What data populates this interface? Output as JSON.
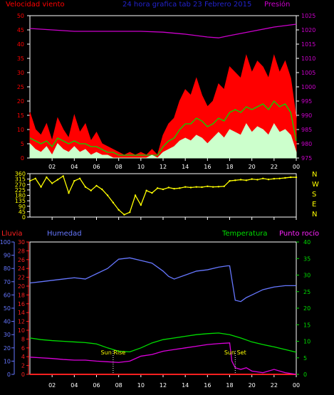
{
  "header": {
    "title": "24 hora grafica tab   23 Febrero 2015",
    "left_label": "Velocidad viento",
    "right_label": "Presión"
  },
  "colors": {
    "wind_gust": "#ff0000",
    "wind_avg": "#00dd00",
    "wind_speed": "#ccffcc",
    "pressure": "#cc00cc",
    "direction": "#ffff00",
    "rain": "#ff2020",
    "humidity": "#6677ff",
    "temperature": "#00dd00",
    "dewpoint": "#dd00dd",
    "title": "#2222cc",
    "axis": "#ffffff"
  },
  "x_ticks": [
    "02",
    "04",
    "06",
    "08",
    "10",
    "12",
    "14",
    "16",
    "18",
    "20",
    "22",
    "00"
  ],
  "compass": [
    "N",
    "W",
    "S",
    "E",
    "N"
  ],
  "annotations": {
    "sunrise": "Sun Rise",
    "sunset": "Sun Set"
  },
  "chart_data": [
    {
      "type": "line",
      "name": "wind-pressure",
      "ylim_left": [
        0,
        50
      ],
      "left_ticks": [
        0,
        5,
        10,
        15,
        20,
        25,
        30,
        35,
        40,
        45,
        50
      ],
      "ylim_right": [
        975,
        1025
      ],
      "right_ticks": [
        975,
        980,
        985,
        990,
        995,
        1000,
        1005,
        1010,
        1015,
        1020,
        1025
      ],
      "xlim": [
        0,
        24
      ],
      "series": [
        {
          "key": "gust",
          "x": [
            0,
            0.5,
            1,
            1.5,
            2,
            2.5,
            3,
            3.5,
            4,
            4.5,
            5,
            5.5,
            6,
            6.5,
            7,
            7.5,
            8,
            8.5,
            9,
            9.5,
            10,
            10.5,
            11,
            11.5,
            12,
            12.5,
            13,
            13.5,
            14,
            14.5,
            15,
            15.5,
            16,
            16.5,
            17,
            17.5,
            18,
            18.5,
            19,
            19.5,
            20,
            20.5,
            21,
            21.5,
            22,
            22.5,
            23,
            23.5,
            24
          ],
          "values": [
            16,
            10,
            8,
            12,
            6,
            14,
            10,
            7,
            15,
            9,
            12,
            6,
            9,
            5,
            4,
            3,
            2,
            1,
            2,
            1,
            2,
            1,
            3,
            1,
            8,
            12,
            14,
            20,
            24,
            22,
            28,
            22,
            18,
            20,
            26,
            24,
            32,
            30,
            28,
            36,
            30,
            34,
            32,
            28,
            36,
            30,
            34,
            28,
            14
          ]
        },
        {
          "key": "avg",
          "x": [
            0,
            0.5,
            1,
            1.5,
            2,
            2.5,
            3,
            3.5,
            4,
            4.5,
            5,
            5.5,
            6,
            6.5,
            7,
            7.5,
            8,
            8.5,
            9,
            9.5,
            10,
            10.5,
            11,
            11.5,
            12,
            12.5,
            13,
            13.5,
            14,
            14.5,
            15,
            15.5,
            16,
            16.5,
            17,
            17.5,
            18,
            18.5,
            19,
            19.5,
            20,
            20.5,
            21,
            21.5,
            22,
            22.5,
            23,
            23.5,
            24
          ],
          "values": [
            7,
            6,
            5,
            6,
            4,
            7,
            6,
            5,
            6,
            5,
            5,
            4,
            4,
            3,
            2,
            2,
            1,
            1,
            1,
            1,
            1,
            1,
            1,
            1,
            4,
            6,
            7,
            10,
            12,
            12,
            14,
            13,
            11,
            12,
            14,
            13,
            16,
            17,
            16,
            18,
            17,
            18,
            19,
            17,
            20,
            18,
            19,
            16,
            6
          ]
        },
        {
          "key": "speed",
          "x": [
            0,
            0.5,
            1,
            1.5,
            2,
            2.5,
            3,
            3.5,
            4,
            4.5,
            5,
            5.5,
            6,
            6.5,
            7,
            7.5,
            8,
            8.5,
            9,
            9.5,
            10,
            10.5,
            11,
            11.5,
            12,
            12.5,
            13,
            13.5,
            14,
            14.5,
            15,
            15.5,
            16,
            16.5,
            17,
            17.5,
            18,
            18.5,
            19,
            19.5,
            20,
            20.5,
            21,
            21.5,
            22,
            22.5,
            23,
            23.5,
            24
          ],
          "values": [
            5,
            3,
            2,
            4,
            1,
            5,
            3,
            2,
            4,
            2,
            3,
            1,
            2,
            1,
            1,
            0,
            0,
            0,
            0,
            0,
            0,
            0,
            1,
            0,
            2,
            3,
            4,
            6,
            7,
            6,
            8,
            7,
            5,
            7,
            9,
            7,
            10,
            9,
            8,
            12,
            9,
            11,
            10,
            8,
            12,
            9,
            10,
            8,
            2
          ]
        },
        {
          "key": "pressure",
          "x": [
            0,
            2,
            4,
            6,
            8,
            10,
            12,
            14,
            16,
            17,
            18,
            20,
            22,
            24
          ],
          "values": [
            1020.5,
            1020,
            1019.5,
            1019.5,
            1019.5,
            1019.5,
            1019.2,
            1018.5,
            1017.5,
            1017.2,
            1018,
            1019.5,
            1021,
            1022
          ]
        }
      ]
    },
    {
      "type": "scatter",
      "name": "wind-direction",
      "ylim": [
        0,
        360
      ],
      "ticks": [
        0,
        45,
        90,
        135,
        180,
        225,
        270,
        315,
        360
      ],
      "xlim": [
        0,
        24
      ],
      "x": [
        0,
        0.5,
        1,
        1.5,
        2,
        2.5,
        3,
        3.5,
        4,
        4.5,
        5,
        5.5,
        6,
        6.5,
        7,
        7.5,
        8,
        8.5,
        9,
        9.5,
        10,
        10.5,
        11,
        11.5,
        12,
        12.5,
        13,
        13.5,
        14,
        14.5,
        15,
        15.5,
        16,
        16.5,
        17,
        17.5,
        18,
        18.5,
        19,
        19.5,
        20,
        20.5,
        21,
        21.5,
        22,
        22.5,
        23,
        23.5,
        24
      ],
      "values": [
        300,
        320,
        250,
        330,
        280,
        310,
        340,
        200,
        300,
        320,
        250,
        220,
        260,
        230,
        180,
        120,
        60,
        20,
        40,
        180,
        100,
        220,
        200,
        240,
        230,
        245,
        235,
        240,
        250,
        245,
        250,
        248,
        255,
        250,
        252,
        255,
        300,
        305,
        310,
        305,
        315,
        310,
        320,
        312,
        318,
        320,
        325,
        330,
        330
      ]
    },
    {
      "type": "line",
      "name": "rain-humidity-temp",
      "ylim_humidity": [
        0,
        100
      ],
      "humidity_ticks": [
        0,
        10,
        20,
        30,
        40,
        50,
        60,
        70,
        80,
        90,
        100
      ],
      "ylim_rain": [
        0,
        30
      ],
      "rain_ticks": [
        0,
        2,
        4,
        6,
        8,
        10,
        12,
        14,
        16,
        18,
        20,
        22,
        24,
        26,
        28,
        30
      ],
      "ylim_temp": [
        0,
        40
      ],
      "temp_ticks": [
        0,
        5,
        10,
        15,
        20,
        25,
        30,
        35,
        40
      ],
      "xlim": [
        0,
        24
      ],
      "series": [
        {
          "key": "humidity",
          "x": [
            0,
            1,
            2,
            3,
            4,
            5,
            6,
            7,
            8,
            9,
            10,
            11,
            12,
            12.5,
            13,
            14,
            15,
            16,
            17,
            17.8,
            18,
            18.5,
            19,
            19.5,
            20,
            21,
            22,
            23,
            24
          ],
          "values": [
            69,
            70,
            71,
            72,
            73,
            72,
            76,
            80,
            87,
            88,
            86,
            84,
            78,
            74,
            72,
            75,
            78,
            79,
            81,
            82,
            82,
            56,
            55,
            58,
            60,
            64,
            66,
            67,
            67
          ]
        },
        {
          "key": "rain",
          "x": [
            0,
            24
          ],
          "values": [
            0,
            0
          ]
        },
        {
          "key": "temperature",
          "x": [
            0,
            1,
            2,
            3,
            4,
            5,
            6,
            7,
            8,
            9,
            10,
            11,
            12,
            13,
            14,
            15,
            16,
            17,
            18,
            19,
            20,
            21,
            22,
            23,
            24
          ],
          "values": [
            11,
            10.5,
            10.2,
            10,
            9.8,
            9.6,
            9.2,
            8,
            7,
            6.8,
            8,
            9.5,
            10.5,
            11,
            11.5,
            12,
            12.3,
            12.5,
            12,
            11,
            9.8,
            9,
            8.3,
            7.5,
            6.7
          ]
        },
        {
          "key": "dewpoint",
          "x": [
            0,
            1,
            2,
            3,
            4,
            5,
            6,
            7,
            8,
            9,
            10,
            11,
            12,
            13,
            14,
            15,
            16,
            17,
            18,
            18.2,
            18.5,
            19,
            19.5,
            20,
            21,
            22,
            23,
            24
          ],
          "values": [
            5.2,
            5,
            4.8,
            4.5,
            4.3,
            4.3,
            4,
            3.8,
            3.6,
            4,
            5.5,
            6,
            7,
            7.5,
            8,
            8.5,
            9,
            9.3,
            9.5,
            4,
            2,
            1.5,
            2,
            1,
            0.5,
            1.5,
            0.5,
            0
          ]
        }
      ]
    }
  ],
  "legend": {
    "lluvia": "Lluvia",
    "humedad": "Humedad",
    "temperatura": "Temperatura",
    "punto_rocio": "Punto rocío"
  }
}
